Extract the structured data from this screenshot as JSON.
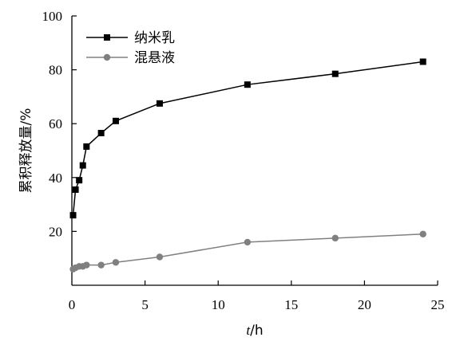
{
  "chart_data": {
    "type": "line",
    "title": "",
    "xlabel": {
      "var": "t",
      "unit": "/h"
    },
    "ylabel": "累积释放量/%",
    "xlim": [
      0,
      25
    ],
    "ylim": [
      0,
      100
    ],
    "xticks": [
      0,
      5,
      10,
      15,
      20,
      25
    ],
    "yticks": [
      20,
      40,
      60,
      80,
      100
    ],
    "grid": false,
    "legend_position": "top-left",
    "series": [
      {
        "name": "纳米乳",
        "marker": "square",
        "color": "#000000",
        "x": [
          0.083,
          0.25,
          0.5,
          0.75,
          1,
          2,
          3,
          6,
          12,
          18,
          24
        ],
        "y": [
          26,
          35.5,
          39,
          44.5,
          51.5,
          56.5,
          61,
          67.5,
          74.5,
          78.5,
          83
        ]
      },
      {
        "name": "混悬液",
        "marker": "circle",
        "color": "#808080",
        "x": [
          0.083,
          0.25,
          0.5,
          0.75,
          1,
          2,
          3,
          6,
          12,
          18,
          24
        ],
        "y": [
          6,
          6.5,
          7,
          7,
          7.5,
          7.5,
          8.5,
          10.5,
          16,
          17.5,
          19
        ]
      }
    ]
  }
}
